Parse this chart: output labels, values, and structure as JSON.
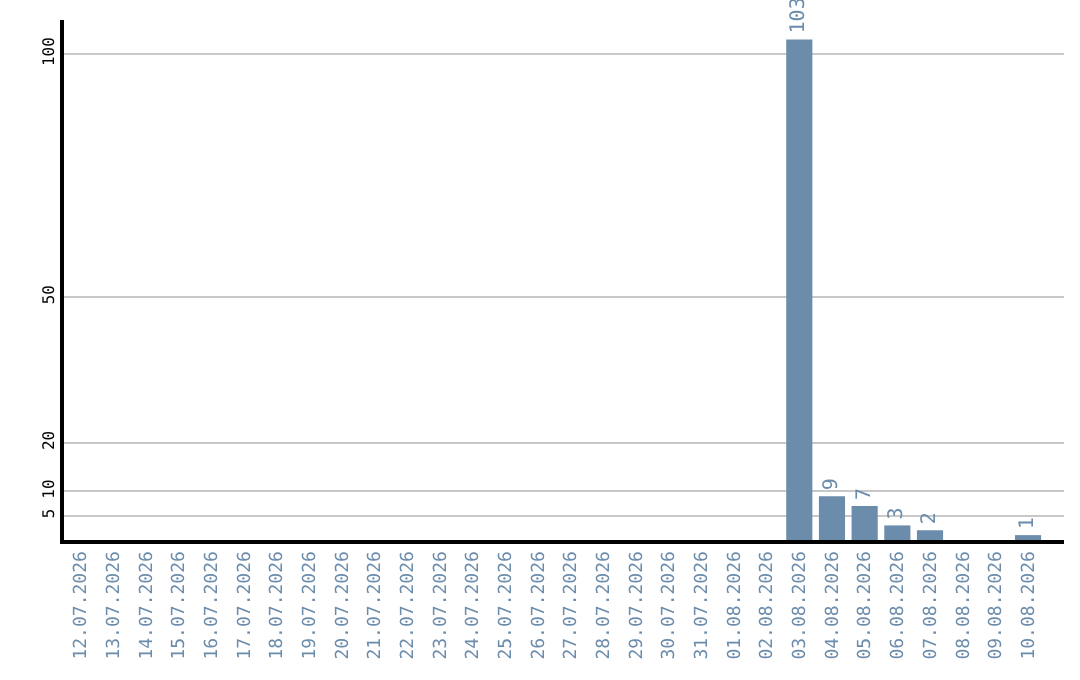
{
  "chart_data": {
    "type": "bar",
    "categories": [
      "12.07.2026",
      "13.07.2026",
      "14.07.2026",
      "15.07.2026",
      "16.07.2026",
      "17.07.2026",
      "18.07.2026",
      "19.07.2026",
      "20.07.2026",
      "21.07.2026",
      "22.07.2026",
      "23.07.2026",
      "24.07.2026",
      "25.07.2026",
      "26.07.2026",
      "27.07.2026",
      "28.07.2026",
      "29.07.2026",
      "30.07.2026",
      "31.07.2026",
      "01.08.2026",
      "02.08.2026",
      "03.08.2026",
      "04.08.2026",
      "05.08.2026",
      "06.08.2026",
      "07.08.2026",
      "08.08.2026",
      "09.08.2026",
      "10.08.2026"
    ],
    "values": [
      0,
      0,
      0,
      0,
      0,
      0,
      0,
      0,
      0,
      0,
      0,
      0,
      0,
      0,
      0,
      0,
      0,
      0,
      0,
      0,
      0,
      0,
      103,
      9,
      7,
      3,
      2,
      0,
      0,
      1
    ],
    "value_labels": [
      null,
      null,
      null,
      null,
      null,
      null,
      null,
      null,
      null,
      null,
      null,
      null,
      null,
      null,
      null,
      null,
      null,
      null,
      null,
      null,
      null,
      null,
      "103",
      "9",
      "7",
      "3",
      "2",
      null,
      null,
      "1"
    ],
    "color": "#6b8cab",
    "ylim": [
      0,
      107
    ],
    "yticks": [
      5,
      10,
      20,
      50,
      100
    ],
    "grid": "y"
  }
}
